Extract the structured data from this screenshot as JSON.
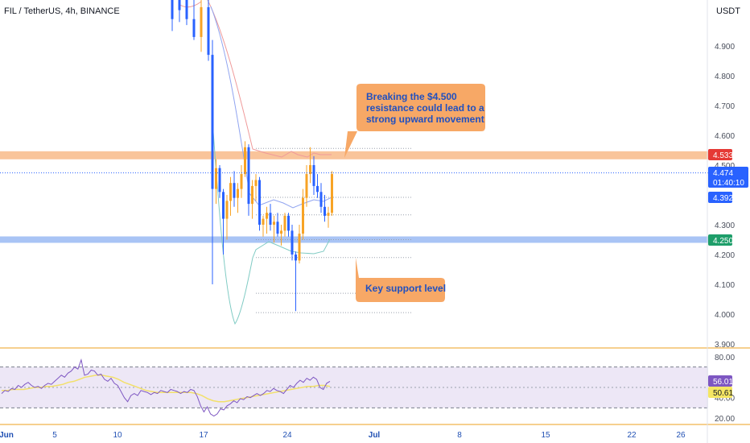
{
  "header": {
    "symbol_line": "FIL / TetherUS, 4h, BINANCE",
    "currency": "USDT"
  },
  "colors": {
    "bull": "#f7a325",
    "bear": "#2962ff",
    "resistance_band": "#f9c49a",
    "support_band": "#a9c4f5",
    "callout_fill": "#f7a866",
    "callout_text": "#2050c0",
    "rsi_line": "#7e57c2",
    "rsi_ma": "#f2e06a",
    "rsi_band": "#ede7f6",
    "tag_red": "#e53935",
    "tag_blue": "#2962ff",
    "tag_green": "#1e9e6a",
    "tag_purple": "#7e57c2",
    "tag_yellow": "#f5e663"
  },
  "callouts": {
    "resistance": [
      "Breaking the $4.500",
      "resistance could lead to a",
      "strong upward movement"
    ],
    "support": [
      "Key support level"
    ]
  },
  "price_tags": {
    "resistance": "4.533",
    "last": "4.474",
    "countdown": "01:40:10",
    "level2": "4.392",
    "support": "4.250"
  },
  "rsi_tags": {
    "rsi": "56.01",
    "ma": "50.61"
  },
  "chart_data": [
    {
      "type": "candlestick",
      "title": "FIL / TetherUS, 4h, BINANCE",
      "ylim": [
        3.88,
        5.06
      ],
      "y_ticks": [
        "4.900",
        "4.800",
        "4.700",
        "4.600",
        "4.500",
        "4.300",
        "4.200",
        "4.100",
        "4.000",
        "3.900"
      ],
      "x_ticks": [
        "Jun",
        "5",
        "10",
        "17",
        "24",
        "Jul",
        "8",
        "15",
        "22",
        "26"
      ],
      "resistance_level": 4.533,
      "support_level": 4.25,
      "last_price": 4.474,
      "ohlc_candles": [
        {
          "o": 5.06,
          "h": 5.06,
          "l": 4.95,
          "c": 4.99
        },
        {
          "o": 5.06,
          "h": 5.06,
          "l": 4.98,
          "c": 5.02
        },
        {
          "o": 5.06,
          "h": 5.06,
          "l": 4.97,
          "c": 4.99
        },
        {
          "o": 4.99,
          "h": 5.06,
          "l": 4.92,
          "c": 4.93
        },
        {
          "o": 4.93,
          "h": 5.06,
          "l": 4.88,
          "c": 5.03
        },
        {
          "o": 5.03,
          "h": 5.06,
          "l": 4.85,
          "c": 4.87
        },
        {
          "o": 4.87,
          "h": 4.92,
          "l": 4.1,
          "c": 4.42
        },
        {
          "o": 4.42,
          "h": 4.52,
          "l": 4.37,
          "c": 4.49
        },
        {
          "o": 4.49,
          "h": 4.5,
          "l": 4.39,
          "c": 4.41
        },
        {
          "o": 4.41,
          "h": 4.42,
          "l": 4.2,
          "c": 4.32
        },
        {
          "o": 4.32,
          "h": 4.4,
          "l": 4.25,
          "c": 4.38
        },
        {
          "o": 4.38,
          "h": 4.46,
          "l": 4.33,
          "c": 4.44
        },
        {
          "o": 4.44,
          "h": 4.48,
          "l": 4.36,
          "c": 4.39
        },
        {
          "o": 4.39,
          "h": 4.44,
          "l": 4.34,
          "c": 4.42
        },
        {
          "o": 4.42,
          "h": 4.5,
          "l": 4.39,
          "c": 4.47
        },
        {
          "o": 4.47,
          "h": 4.58,
          "l": 4.46,
          "c": 4.56
        },
        {
          "o": 4.56,
          "h": 4.57,
          "l": 4.33,
          "c": 4.37
        },
        {
          "o": 4.37,
          "h": 4.45,
          "l": 4.32,
          "c": 4.43
        },
        {
          "o": 4.43,
          "h": 4.47,
          "l": 4.38,
          "c": 4.45
        },
        {
          "o": 4.45,
          "h": 4.46,
          "l": 4.28,
          "c": 4.3
        },
        {
          "o": 4.3,
          "h": 4.33,
          "l": 4.26,
          "c": 4.32
        },
        {
          "o": 4.32,
          "h": 4.36,
          "l": 4.27,
          "c": 4.34
        },
        {
          "o": 4.34,
          "h": 4.37,
          "l": 4.28,
          "c": 4.3
        },
        {
          "o": 4.3,
          "h": 4.33,
          "l": 4.24,
          "c": 4.31
        },
        {
          "o": 4.31,
          "h": 4.34,
          "l": 4.26,
          "c": 4.27
        },
        {
          "o": 4.27,
          "h": 4.3,
          "l": 4.23,
          "c": 4.28
        },
        {
          "o": 4.28,
          "h": 4.34,
          "l": 4.26,
          "c": 4.33
        },
        {
          "o": 4.33,
          "h": 4.34,
          "l": 4.26,
          "c": 4.28
        },
        {
          "o": 4.28,
          "h": 4.3,
          "l": 4.18,
          "c": 4.2
        },
        {
          "o": 4.2,
          "h": 4.21,
          "l": 4.01,
          "c": 4.18
        },
        {
          "o": 4.18,
          "h": 4.3,
          "l": 4.17,
          "c": 4.27
        },
        {
          "o": 4.27,
          "h": 4.42,
          "l": 4.25,
          "c": 4.39
        },
        {
          "o": 4.39,
          "h": 4.5,
          "l": 4.36,
          "c": 4.47
        },
        {
          "o": 4.47,
          "h": 4.56,
          "l": 4.44,
          "c": 4.5
        },
        {
          "o": 4.5,
          "h": 4.53,
          "l": 4.4,
          "c": 4.43
        },
        {
          "o": 4.43,
          "h": 4.47,
          "l": 4.39,
          "c": 4.41
        },
        {
          "o": 4.41,
          "h": 4.44,
          "l": 4.34,
          "c": 4.36
        },
        {
          "o": 4.36,
          "h": 4.4,
          "l": 4.31,
          "c": 4.33
        },
        {
          "o": 4.33,
          "h": 4.36,
          "l": 4.29,
          "c": 4.34
        },
        {
          "o": 4.34,
          "h": 4.48,
          "l": 4.33,
          "c": 4.47
        }
      ]
    },
    {
      "type": "line",
      "title": "RSI",
      "ylim": [
        12,
        88
      ],
      "y_ticks": [
        "80.00",
        "40.00",
        "20.00"
      ],
      "band": [
        30,
        70
      ],
      "midline": 50,
      "rsi": [
        44,
        47,
        46,
        49,
        48,
        52,
        50,
        53,
        55,
        52,
        50,
        51,
        49,
        52,
        54,
        53,
        56,
        59,
        62,
        60,
        64,
        66,
        70,
        68,
        77,
        62,
        63,
        67,
        66,
        62,
        63,
        58,
        56,
        59,
        54,
        52,
        46,
        40,
        36,
        42,
        44,
        42,
        47,
        46,
        45,
        43,
        45,
        44,
        47,
        46,
        45,
        48,
        47,
        46,
        44,
        46,
        45,
        48,
        47,
        41,
        32,
        26,
        31,
        24,
        22,
        24,
        29,
        28,
        32,
        34,
        37,
        35,
        39,
        38,
        41,
        40,
        42,
        44,
        42,
        44,
        47,
        46,
        49,
        47,
        46,
        44,
        48,
        52,
        50,
        54,
        57,
        55,
        59,
        57,
        60,
        58,
        50,
        48,
        54,
        56
      ],
      "ma": [
        47,
        47,
        48,
        48,
        48,
        49,
        50,
        50,
        51,
        51,
        52,
        53,
        55,
        56,
        58,
        60,
        61,
        62,
        62,
        61,
        60,
        58,
        55,
        53,
        51,
        49,
        47,
        46,
        45,
        45,
        45,
        45,
        45,
        45,
        45,
        44,
        42,
        39,
        37,
        36,
        36,
        37,
        38,
        39,
        40,
        41,
        42,
        43,
        44,
        45,
        46,
        47,
        48,
        49,
        50,
        51,
        51,
        52,
        52,
        51
      ]
    }
  ]
}
